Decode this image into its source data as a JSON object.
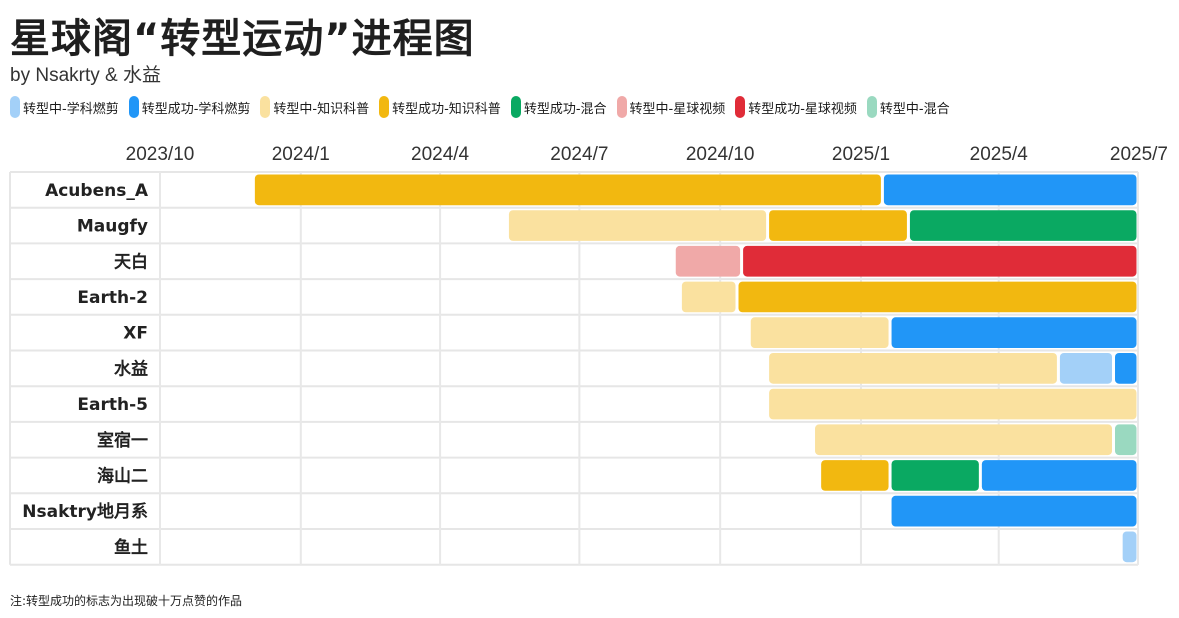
{
  "chart_data": {
    "type": "gantt",
    "title": "星球阁“转型运动”进程图",
    "subtitle": "by Nsakrty & 水益",
    "footnote": "注:转型成功的标志为出现破十万点赞的作品",
    "x_ticks": [
      "2023/10",
      "2024/1",
      "2024/4",
      "2024/7",
      "2024/10",
      "2025/1",
      "2025/4",
      "2025/7"
    ],
    "xlim": [
      "2023-10-01",
      "2025-07-01"
    ],
    "legend": [
      {
        "key": "xk_mid",
        "label": "转型中-学科燃剪",
        "color": "#a3d0f8"
      },
      {
        "key": "xk_ok",
        "label": "转型成功-学科燃剪",
        "color": "#2196f7"
      },
      {
        "key": "zs_mid",
        "label": "转型中-知识科普",
        "color": "#fae19f"
      },
      {
        "key": "zs_ok",
        "label": "转型成功-知识科普",
        "color": "#f2b810"
      },
      {
        "key": "hh_ok",
        "label": "转型成功-混合",
        "color": "#0aa962"
      },
      {
        "key": "xq_mid",
        "label": "转型中-星球视频",
        "color": "#f0a9a8"
      },
      {
        "key": "xq_ok",
        "label": "转型成功-星球视频",
        "color": "#e02c38"
      },
      {
        "key": "hh_mid",
        "label": "转型中-混合",
        "color": "#9ad9c0"
      }
    ],
    "rows": [
      {
        "name": "Acubens_A",
        "segments": [
          {
            "status": "zs_ok",
            "start": "2023-12-01",
            "end": "2025-01-15"
          },
          {
            "status": "xk_ok",
            "start": "2025-01-15",
            "end": "2025-07-01"
          }
        ]
      },
      {
        "name": "Maugfy",
        "segments": [
          {
            "status": "zs_mid",
            "start": "2024-05-15",
            "end": "2024-11-01"
          },
          {
            "status": "zs_ok",
            "start": "2024-11-01",
            "end": "2025-02-01"
          },
          {
            "status": "hh_ok",
            "start": "2025-02-01",
            "end": "2025-07-01"
          }
        ]
      },
      {
        "name": "天白",
        "segments": [
          {
            "status": "xq_mid",
            "start": "2024-09-01",
            "end": "2024-10-15"
          },
          {
            "status": "xq_ok",
            "start": "2024-10-15",
            "end": "2025-07-01"
          }
        ]
      },
      {
        "name": "Earth-2",
        "segments": [
          {
            "status": "zs_mid",
            "start": "2024-09-05",
            "end": "2024-10-12"
          },
          {
            "status": "zs_ok",
            "start": "2024-10-12",
            "end": "2025-07-01"
          }
        ]
      },
      {
        "name": "XF",
        "segments": [
          {
            "status": "zs_mid",
            "start": "2024-10-20",
            "end": "2025-01-20"
          },
          {
            "status": "xk_ok",
            "start": "2025-01-20",
            "end": "2025-07-01"
          }
        ]
      },
      {
        "name": "水益",
        "segments": [
          {
            "status": "zs_mid",
            "start": "2024-11-01",
            "end": "2025-05-10"
          },
          {
            "status": "xk_mid",
            "start": "2025-05-10",
            "end": "2025-06-15"
          },
          {
            "status": "xk_ok",
            "start": "2025-06-15",
            "end": "2025-07-01"
          }
        ]
      },
      {
        "name": "Earth-5",
        "segments": [
          {
            "status": "zs_mid",
            "start": "2024-11-01",
            "end": "2025-07-01"
          }
        ]
      },
      {
        "name": "室宿一",
        "segments": [
          {
            "status": "zs_mid",
            "start": "2024-12-01",
            "end": "2025-06-15"
          },
          {
            "status": "hh_mid",
            "start": "2025-06-15",
            "end": "2025-07-01"
          }
        ]
      },
      {
        "name": "海山二",
        "segments": [
          {
            "status": "zs_ok",
            "start": "2024-12-05",
            "end": "2025-01-20"
          },
          {
            "status": "hh_ok",
            "start": "2025-01-20",
            "end": "2025-03-20"
          },
          {
            "status": "xk_ok",
            "start": "2025-03-20",
            "end": "2025-07-01"
          }
        ]
      },
      {
        "name": "Nsaktry地月系",
        "segments": [
          {
            "status": "xk_ok",
            "start": "2025-01-20",
            "end": "2025-07-01"
          }
        ]
      },
      {
        "name": "鱼土",
        "segments": [
          {
            "status": "xk_mid",
            "start": "2025-06-20",
            "end": "2025-07-01"
          }
        ]
      }
    ]
  }
}
